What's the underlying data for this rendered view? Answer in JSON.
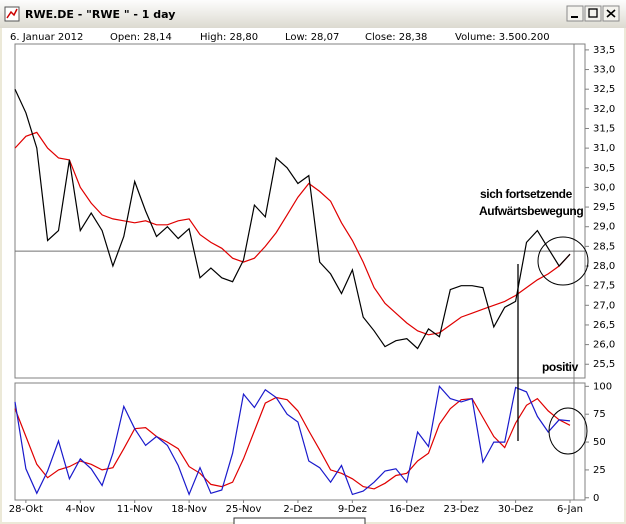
{
  "window": {
    "title": "RWE.DE - \"RWE \" - 1 day"
  },
  "info_bar": [
    "6. Januar 2012",
    "Open: 28,14",
    "High: 28,80",
    "Low: 28,07",
    "Close: 28,38",
    "Volume: 3.500.200"
  ],
  "chart_data": [
    {
      "type": "line",
      "annotations": [
        "sich fortsetzende",
        "Aufwärtsbewegung"
      ],
      "reference_line": 28.38,
      "ylim": [
        25.15,
        33.65
      ],
      "yticks": [
        {
          "value": 25.5,
          "label": "25,5"
        },
        {
          "value": 26,
          "label": "26,0"
        },
        {
          "value": 26.5,
          "label": "26,5"
        },
        {
          "value": 27,
          "label": "27,0"
        },
        {
          "value": 27.5,
          "label": "27,5"
        },
        {
          "value": 28,
          "label": "28,0"
        },
        {
          "value": 28.5,
          "label": "28,5"
        },
        {
          "value": 29,
          "label": "29,0"
        },
        {
          "value": 29.5,
          "label": "29,5"
        },
        {
          "value": 30,
          "label": "30,0"
        },
        {
          "value": 30.5,
          "label": "30,5"
        },
        {
          "value": 31,
          "label": "31,0"
        },
        {
          "value": 31.5,
          "label": "31,5"
        },
        {
          "value": 32,
          "label": "32,0"
        },
        {
          "value": 32.5,
          "label": "32,5"
        },
        {
          "value": 33,
          "label": "33,0"
        },
        {
          "value": 33.5,
          "label": "33,5"
        }
      ],
      "series": [
        {
          "color": "#000000",
          "values": [
            32.5,
            31.9,
            31.0,
            28.65,
            28.9,
            30.7,
            28.9,
            29.35,
            28.9,
            28.0,
            28.75,
            30.15,
            29.4,
            28.75,
            29.0,
            28.7,
            28.95,
            27.7,
            27.95,
            27.7,
            27.6,
            28.15,
            29.55,
            29.25,
            30.75,
            30.5,
            30.1,
            30.3,
            28.1,
            27.8,
            27.3,
            27.9,
            26.7,
            26.35,
            25.95,
            26.1,
            26.15,
            25.9,
            26.4,
            26.2,
            27.4,
            27.5,
            27.5,
            27.45,
            26.45,
            26.95,
            27.1,
            28.6,
            28.9,
            28.45,
            28.0,
            28.3
          ]
        },
        {
          "color": "#e00000",
          "values": [
            31.0,
            31.3,
            31.4,
            31.0,
            30.75,
            30.7,
            30.0,
            29.6,
            29.3,
            29.2,
            29.15,
            29.1,
            29.15,
            29.05,
            29.05,
            29.15,
            29.2,
            28.8,
            28.6,
            28.45,
            28.2,
            28.1,
            28.2,
            28.5,
            28.85,
            29.3,
            29.75,
            30.1,
            29.9,
            29.65,
            29.1,
            28.65,
            28.1,
            27.45,
            27.05,
            26.8,
            26.55,
            26.35,
            26.25,
            26.3,
            26.5,
            26.7,
            26.8,
            26.9,
            27.0,
            27.1,
            27.25,
            27.45,
            27.65,
            27.8,
            28.0,
            28.3
          ]
        }
      ]
    },
    {
      "type": "line",
      "annotations": [
        "positiv"
      ],
      "categories": [
        null,
        "28-Okt",
        null,
        null,
        null,
        null,
        "4-Nov",
        null,
        null,
        null,
        null,
        "11-Nov",
        null,
        null,
        null,
        null,
        "18-Nov",
        null,
        null,
        null,
        null,
        "25-Nov",
        null,
        null,
        null,
        null,
        "2-Dez",
        null,
        null,
        null,
        null,
        "9-Dez",
        null,
        null,
        null,
        null,
        "16-Dez",
        null,
        null,
        null,
        null,
        "23-Dez",
        null,
        null,
        null,
        null,
        "30-Dez",
        null,
        null,
        null,
        null,
        "6-Jan"
      ],
      "ylim": [
        -2,
        103
      ],
      "yticks": [
        0,
        25,
        50,
        75,
        100
      ],
      "series": [
        {
          "color": "#1a1acc",
          "values": [
            86,
            26,
            4,
            24,
            51,
            17,
            35,
            26,
            11,
            40,
            82,
            62,
            47,
            55,
            47,
            29,
            3,
            27,
            4,
            7,
            40,
            93,
            81,
            97,
            90,
            75,
            68,
            33,
            27,
            14,
            29,
            3,
            6,
            14,
            24,
            26,
            14,
            59,
            46,
            100,
            89,
            86,
            89,
            32,
            50,
            50,
            99,
            95,
            73,
            59,
            70,
            69
          ]
        },
        {
          "color": "#e00000",
          "values": [
            80,
            55,
            30,
            18,
            25,
            28,
            33,
            30,
            25,
            27,
            44,
            62,
            63,
            55,
            50,
            44,
            28,
            22,
            12,
            10,
            14,
            35,
            60,
            85,
            90,
            88,
            78,
            60,
            43,
            25,
            22,
            17,
            10,
            8,
            13,
            20,
            22,
            33,
            40,
            66,
            80,
            88,
            89,
            72,
            55,
            45,
            67,
            83,
            89,
            78,
            70,
            65
          ]
        }
      ]
    }
  ]
}
